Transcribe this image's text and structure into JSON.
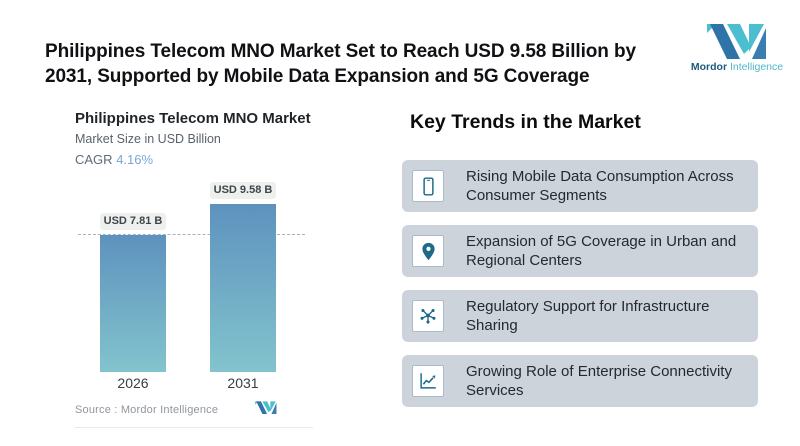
{
  "header": {
    "title": "Philippines Telecom MNO Market Set to Reach USD 9.58 Billion by 2031, Supported by Mobile Data Expansion and 5G Coverage",
    "logo": {
      "bold": "Mordor",
      "light": "Intelligence"
    }
  },
  "chart": {
    "title": "Philippines Telecom MNO Market",
    "subtitle": "Market Size in USD Billion",
    "cagr_label": "CAGR",
    "cagr_value": "4.16%",
    "source_label": "Source :  Mordor Intelligence"
  },
  "chart_data": {
    "type": "bar",
    "categories": [
      "2026",
      "2031"
    ],
    "values": [
      7.81,
      9.58
    ],
    "value_labels": [
      "USD 7.81 B",
      "USD 9.58 B"
    ],
    "title": "Philippines Telecom MNO Market",
    "subtitle": "Market Size in USD Billion",
    "ylabel": "Market Size in USD Billion",
    "xlabel": "",
    "cagr": "4.16%",
    "reference_line": 7.81,
    "ylim": [
      0,
      9.58
    ],
    "grid": false,
    "legend": false,
    "bar_gradient": [
      "#5e92be",
      "#82c4cd"
    ]
  },
  "trends": {
    "heading": "Key Trends in the Market",
    "items": [
      {
        "icon": "smartphone-icon",
        "line1": "Rising Mobile Data Consumption Across",
        "line2": "Consumer Segments"
      },
      {
        "icon": "location-pin-icon",
        "line1": "Expansion of 5G Coverage in Urban and",
        "line2": "Regional Centers"
      },
      {
        "icon": "network-hub-icon",
        "line1": "Regulatory Support for Infrastructure",
        "line2": "Sharing"
      },
      {
        "icon": "line-chart-icon",
        "line1": "Growing Role of Enterprise Connectivity",
        "line2": "Services"
      }
    ]
  },
  "colors": {
    "brand_dark_blue": "#2e74a8",
    "brand_teal": "#4bbfcf",
    "icon_teal": "#1d6b88",
    "bar_top": "#5e92be",
    "bar_bottom": "#82c4cd",
    "card_background": "#ccd3da",
    "value_pill_background": "#eef0ee",
    "cagr_value_blue": "#79a7d9"
  }
}
